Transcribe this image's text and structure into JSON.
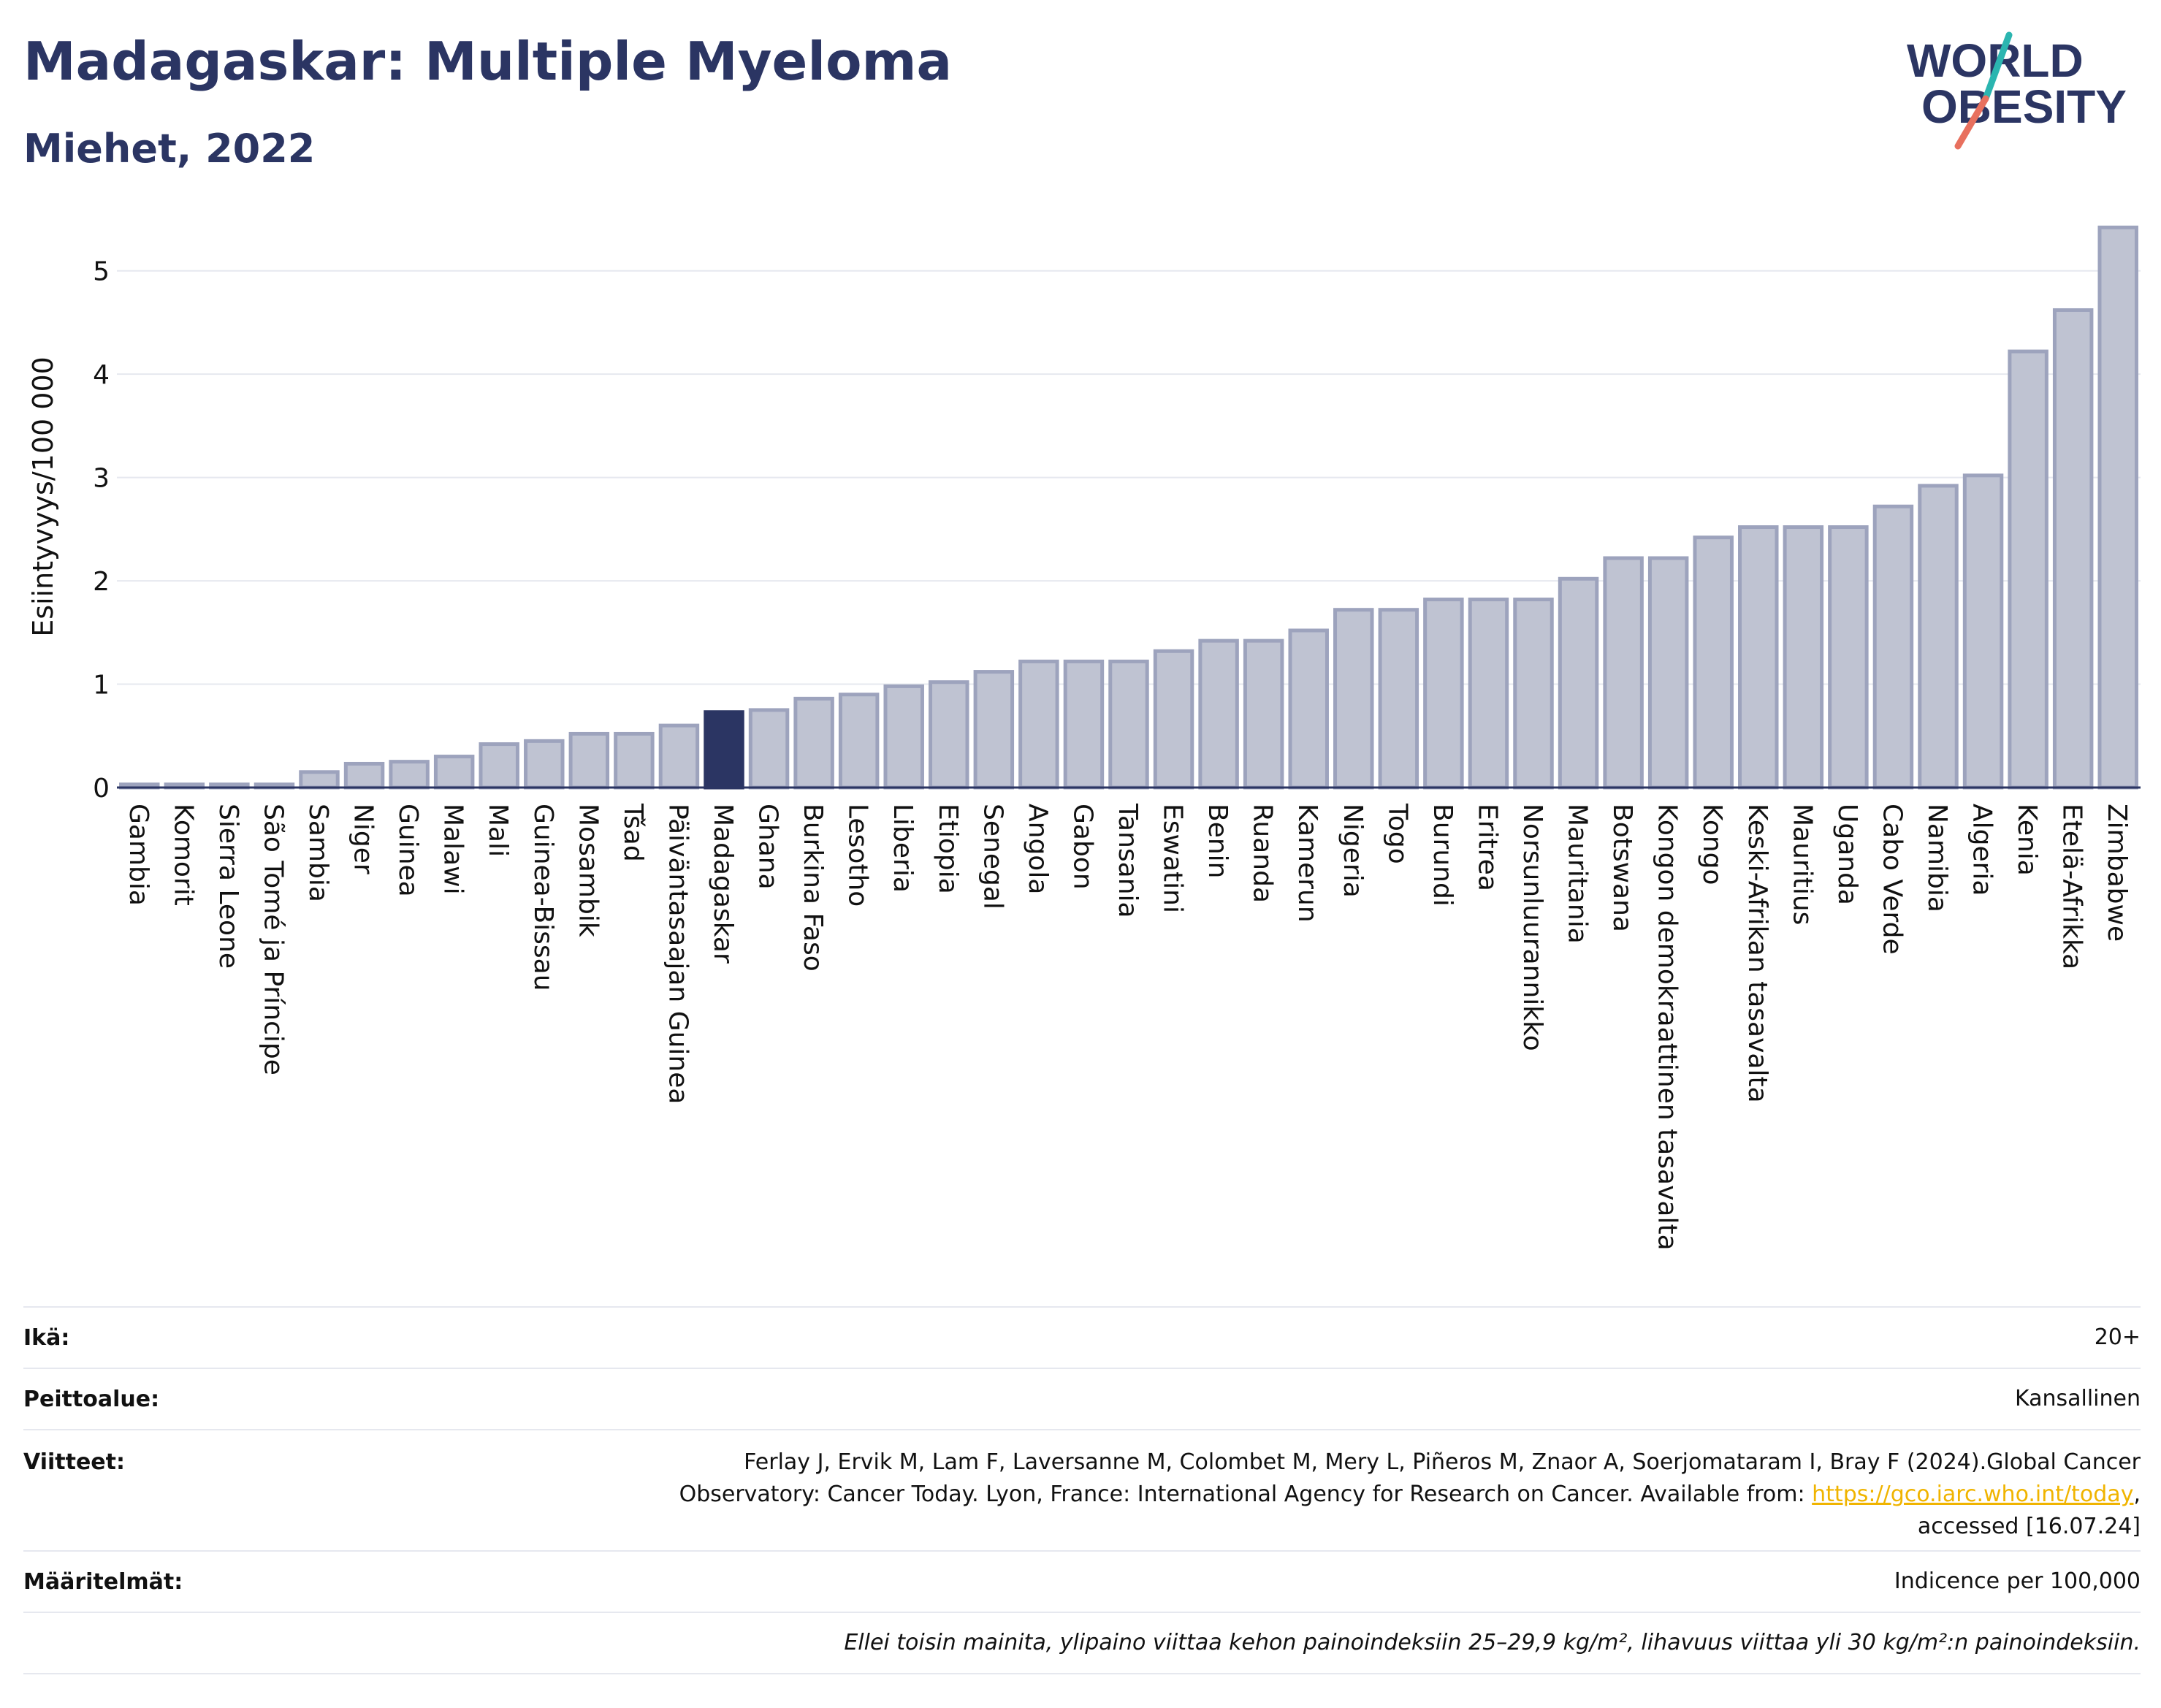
{
  "title": "Madagaskar: Multiple Myeloma",
  "subtitle": "Miehet, 2022",
  "logo": {
    "line1": "WORLD",
    "line2": "OBESITY"
  },
  "colors": {
    "highlight": "#2b3563",
    "bar": "#bfc3d2",
    "bar_edge": "#9da3bd",
    "title": "#2b3563",
    "link": "#f0b400"
  },
  "chart_data": {
    "type": "bar",
    "ylabel": "Esiintyvyys/100 000",
    "ylim": [
      0,
      5.5
    ],
    "yticks": [
      0,
      1,
      2,
      3,
      4,
      5
    ],
    "highlight": "Madagaskar",
    "categories": [
      "Gambia",
      "Komorit",
      "Sierra Leone",
      "São Tomé ja Príncipe",
      "Sambia",
      "Niger",
      "Guinea",
      "Malawi",
      "Mali",
      "Guinea-Bissau",
      "Mosambik",
      "Tšad",
      "Päiväntasaajan Guinea",
      "Madagaskar",
      "Ghana",
      "Burkina Faso",
      "Lesotho",
      "Liberia",
      "Etiopia",
      "Senegal",
      "Angola",
      "Gabon",
      "Tansania",
      "Eswatini",
      "Benin",
      "Ruanda",
      "Kamerun",
      "Nigeria",
      "Togo",
      "Burundi",
      "Eritrea",
      "Norsunluurannikko",
      "Mauritania",
      "Botswana",
      "Kongon demokraattinen tasavalta",
      "Kongo",
      "Keski-Afrikan tasavalta",
      "Mauritius",
      "Uganda",
      "Cabo Verde",
      "Namibia",
      "Algeria",
      "Kenia",
      "Etelä-Afrikka",
      "Zimbabwe"
    ],
    "values": [
      0.03,
      0.03,
      0.03,
      0.03,
      0.15,
      0.23,
      0.25,
      0.3,
      0.42,
      0.45,
      0.52,
      0.52,
      0.6,
      0.73,
      0.75,
      0.86,
      0.9,
      0.98,
      1.02,
      1.12,
      1.22,
      1.22,
      1.22,
      1.32,
      1.42,
      1.42,
      1.52,
      1.72,
      1.72,
      1.82,
      1.82,
      1.82,
      2.02,
      2.22,
      2.22,
      2.42,
      2.52,
      2.52,
      2.52,
      2.72,
      2.92,
      3.02,
      4.22,
      4.62,
      5.42
    ]
  },
  "info": {
    "age_label": "Ikä:",
    "age_value": "20+",
    "coverage_label": "Peittoalue:",
    "coverage_value": "Kansallinen",
    "references_label": "Viitteet:",
    "references_line1": "Ferlay J, Ervik M, Lam F, Laversanne M, Colombet M, Mery L, Piñeros M, Znaor A, Soerjomataram I, Bray F (2024).Global Cancer",
    "references_line2_pre": "Observatory: Cancer Today. Lyon, France: International Agency for Research on Cancer. Available from: ",
    "references_link": "https://gco.iarc.who.int/today",
    "references_line2_post": ",",
    "references_line3": "accessed [16.07.24]",
    "definitions_label": "Määritelmät:",
    "definitions_value": "Indicence per 100,000",
    "footnote": "Ellei toisin mainita, ylipaino viittaa kehon painoindeksiin 25–29,9 kg/m², lihavuus viittaa yli 30 kg/m²:n painoindeksiin."
  }
}
